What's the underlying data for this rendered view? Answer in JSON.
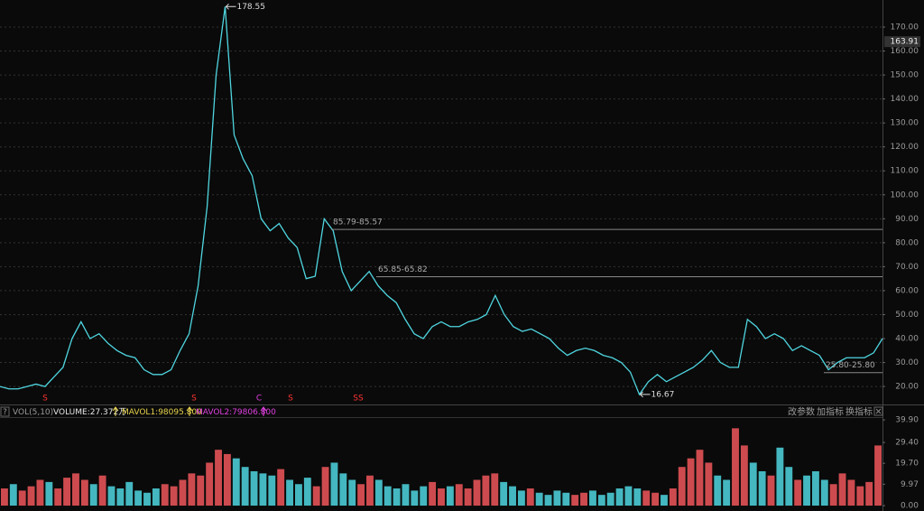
{
  "chart_data": [
    {
      "type": "line",
      "values": [
        20,
        19,
        19,
        20,
        21,
        20,
        24,
        28,
        40,
        47,
        40,
        42,
        38,
        35,
        33,
        32,
        27,
        25,
        25,
        27,
        35,
        42,
        62,
        95,
        150,
        178.55,
        125,
        115,
        108,
        90,
        85,
        88,
        82,
        78,
        65,
        66,
        90,
        85,
        68,
        60,
        64,
        68,
        62,
        58,
        55,
        48,
        42,
        40,
        45,
        47,
        45,
        45,
        47,
        48,
        50,
        58,
        50,
        45,
        43,
        44,
        42,
        40,
        36,
        33,
        35,
        36,
        35,
        33,
        32,
        30,
        26,
        16.67,
        22,
        25,
        22,
        24,
        26,
        28,
        31,
        35,
        30,
        28,
        28,
        48,
        45,
        40,
        42,
        40,
        35,
        37,
        35,
        33,
        27,
        30,
        32,
        32,
        32,
        34,
        40
      ],
      "color": "#4fd6e0",
      "ylim": [
        12.5,
        181.3
      ],
      "yticks": [
        {
          "value": 20,
          "label": "20.00"
        },
        {
          "value": 30,
          "label": "30.00"
        },
        {
          "value": 40,
          "label": "40.00"
        },
        {
          "value": 50,
          "label": "50.00"
        },
        {
          "value": 60,
          "label": "60.00"
        },
        {
          "value": 70,
          "label": "70.00"
        },
        {
          "value": 80,
          "label": "80.00"
        },
        {
          "value": 90,
          "label": "90.00"
        },
        {
          "value": 100,
          "label": "100.00"
        },
        {
          "value": 110,
          "label": "110.00"
        },
        {
          "value": 120,
          "label": "120.00"
        },
        {
          "value": 130,
          "label": "130.00"
        },
        {
          "value": 140,
          "label": "140.00"
        },
        {
          "value": 150,
          "label": "150.00"
        },
        {
          "value": 160,
          "label": "160.00"
        },
        {
          "value": 170,
          "label": "170.00"
        }
      ],
      "grid": true,
      "cursor_value": 163.91,
      "levels": [
        {
          "label": "85.79-85.57",
          "value": 85.57
        },
        {
          "label": "65.85-65.82",
          "value": 65.82
        },
        {
          "label": "25.80-25.80",
          "value": 25.8
        }
      ],
      "signals": [
        "S",
        "S",
        "C",
        "S",
        "SS"
      ]
    },
    {
      "type": "bar",
      "values": [
        8,
        10,
        7,
        9,
        12,
        11,
        8,
        13,
        15,
        12,
        10,
        14,
        9,
        8,
        11,
        7,
        6,
        8,
        10,
        9,
        12,
        15,
        14,
        20,
        26,
        24,
        22,
        18,
        16,
        15,
        14,
        17,
        12,
        10,
        13,
        9,
        18,
        20,
        15,
        12,
        10,
        14,
        12,
        9,
        8,
        10,
        7,
        9,
        11,
        8,
        9,
        10,
        8,
        12,
        14,
        15,
        11,
        9,
        7,
        8,
        6,
        5,
        7,
        6,
        5,
        6,
        7,
        5,
        6,
        8,
        9,
        8,
        7,
        6,
        5,
        8,
        18,
        22,
        26,
        20,
        14,
        12,
        36,
        28,
        20,
        16,
        14,
        27,
        18,
        12,
        14,
        16,
        12,
        10,
        15,
        12,
        9,
        11,
        28
      ],
      "up_color": "#f0575c",
      "down_color": "#4fd6e0",
      "ylim": [
        -2.5,
        41.2
      ],
      "yticks": [
        {
          "value": 0,
          "label": "0.00"
        },
        {
          "value": 9.97,
          "label": "9.97"
        },
        {
          "value": 19.7,
          "label": "19.70"
        },
        {
          "value": 29.4,
          "label": "29.40"
        },
        {
          "value": 39.9,
          "label": "39.90"
        }
      ],
      "help": "?",
      "indicator": "VOL(5,10)",
      "volume": "VOLUME:27.372万",
      "mavol1": "MAVOL1:98095.800",
      "mavol2": "MAVOL2:79806.800",
      "buttons": [
        "改参数",
        "加指标",
        "换指标"
      ]
    }
  ]
}
